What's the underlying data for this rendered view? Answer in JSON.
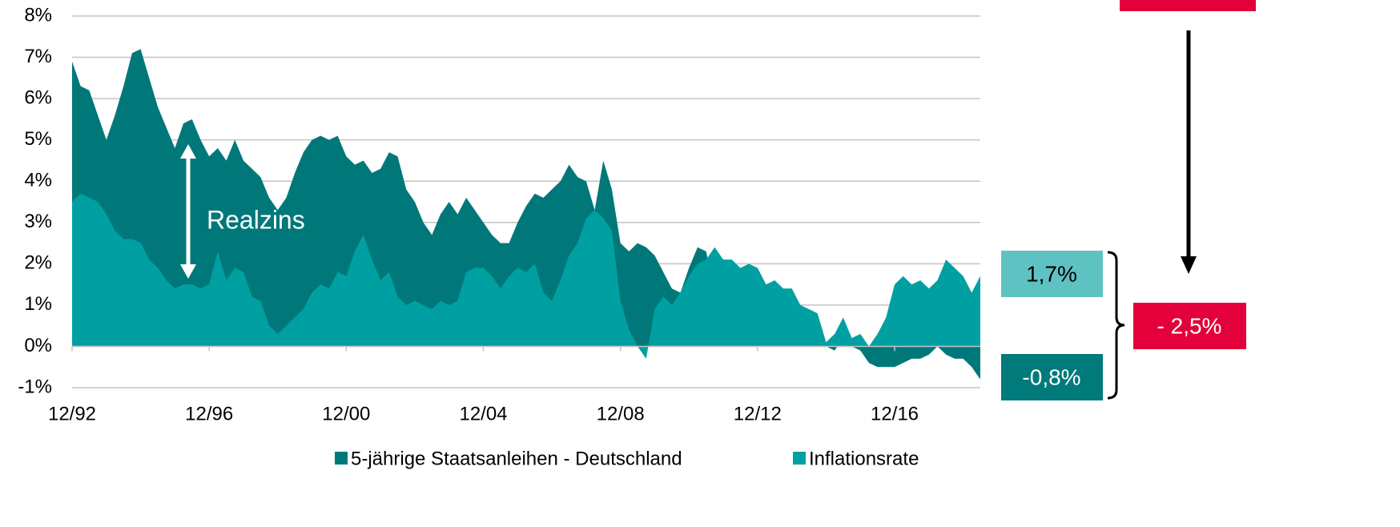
{
  "chart_data": {
    "type": "area",
    "categories": [
      "12/92",
      null,
      null,
      null,
      null,
      null,
      null,
      null,
      null,
      null,
      null,
      null,
      null,
      null,
      null,
      null,
      "12/96",
      null,
      null,
      null,
      null,
      null,
      null,
      null,
      null,
      null,
      null,
      null,
      null,
      null,
      null,
      null,
      "12/00",
      null,
      null,
      null,
      null,
      null,
      null,
      null,
      null,
      null,
      null,
      null,
      null,
      null,
      null,
      null,
      "12/04",
      null,
      null,
      null,
      null,
      null,
      null,
      null,
      null,
      null,
      null,
      null,
      null,
      null,
      null,
      null,
      "12/08",
      null,
      null,
      null,
      null,
      null,
      null,
      null,
      null,
      null,
      null,
      null,
      null,
      null,
      null,
      null,
      "12/12",
      null,
      null,
      null,
      null,
      null,
      null,
      null,
      null,
      null,
      null,
      null,
      null,
      null,
      null,
      null,
      "12/16",
      null,
      null,
      null,
      null,
      null,
      null,
      null,
      null,
      null,
      null
    ],
    "series": [
      {
        "name": "5-jährige Staatsanleihen - Deutschland",
        "color": "#00787a",
        "values": [
          6.9,
          6.3,
          6.2,
          5.6,
          5.0,
          5.6,
          6.3,
          7.1,
          7.2,
          6.5,
          5.8,
          5.3,
          4.8,
          5.4,
          5.5,
          5.0,
          4.6,
          4.8,
          4.5,
          5.0,
          4.5,
          4.3,
          4.1,
          3.6,
          3.3,
          3.6,
          4.2,
          4.7,
          5.0,
          5.1,
          5.0,
          5.1,
          4.6,
          4.4,
          4.5,
          4.2,
          4.3,
          4.7,
          4.6,
          3.8,
          3.5,
          3.0,
          2.7,
          3.2,
          3.5,
          3.2,
          3.6,
          3.3,
          3.0,
          2.7,
          2.5,
          2.5,
          3.0,
          3.4,
          3.7,
          3.6,
          3.8,
          4.0,
          4.4,
          4.1,
          4.0,
          3.3,
          4.5,
          3.8,
          2.5,
          2.3,
          2.5,
          2.4,
          2.2,
          1.8,
          1.4,
          1.3,
          1.9,
          2.4,
          2.3,
          1.3,
          0.8,
          0.8,
          0.5,
          0.4,
          0.3,
          0.4,
          0.7,
          0.9,
          0.9,
          0.7,
          0.4,
          0.2,
          0.0,
          -0.1,
          0.2,
          0.0,
          -0.1,
          -0.4,
          -0.5,
          -0.5,
          -0.5,
          -0.4,
          -0.3,
          -0.3,
          -0.2,
          0.0,
          -0.2,
          -0.3,
          -0.3,
          -0.5,
          -0.8
        ]
      },
      {
        "name": "Inflationsrate",
        "color": "#00a0a2",
        "values": [
          3.5,
          3.7,
          3.6,
          3.5,
          3.2,
          2.8,
          2.6,
          2.6,
          2.5,
          2.1,
          1.9,
          1.6,
          1.4,
          1.5,
          1.5,
          1.4,
          1.5,
          2.3,
          1.6,
          1.9,
          1.8,
          1.2,
          1.1,
          0.5,
          0.3,
          0.5,
          0.7,
          0.9,
          1.3,
          1.5,
          1.4,
          1.8,
          1.7,
          2.3,
          2.7,
          2.1,
          1.6,
          1.8,
          1.2,
          1.0,
          1.1,
          1.0,
          0.9,
          1.1,
          1.0,
          1.1,
          1.8,
          1.9,
          1.9,
          1.7,
          1.4,
          1.7,
          1.9,
          1.8,
          2.0,
          1.3,
          1.1,
          1.6,
          2.2,
          2.5,
          3.1,
          3.3,
          3.1,
          2.8,
          1.1,
          0.4,
          0.0,
          -0.3,
          0.9,
          1.2,
          1.0,
          1.3,
          1.7,
          2.0,
          2.1,
          2.4,
          2.1,
          2.1,
          1.9,
          2.0,
          1.9,
          1.5,
          1.6,
          1.4,
          1.4,
          1.0,
          0.9,
          0.8,
          0.1,
          0.3,
          0.7,
          0.2,
          0.3,
          0.0,
          0.3,
          0.7,
          1.5,
          1.7,
          1.5,
          1.6,
          1.4,
          1.6,
          2.1,
          1.9,
          1.7,
          1.3,
          1.7
        ]
      }
    ],
    "ylim": [
      -1,
      8
    ],
    "yticks": [
      {
        "value": -1,
        "label": "-1%"
      },
      {
        "value": 0,
        "label": "0%"
      },
      {
        "value": 1,
        "label": "1%"
      },
      {
        "value": 2,
        "label": "2%"
      },
      {
        "value": 3,
        "label": "3%"
      },
      {
        "value": 4,
        "label": "4%"
      },
      {
        "value": 5,
        "label": "5%"
      },
      {
        "value": 6,
        "label": "6%"
      },
      {
        "value": 7,
        "label": "7%"
      },
      {
        "value": 8,
        "label": "8%"
      }
    ],
    "grid": true,
    "annotations": [
      "Realzins",
      "1,7%",
      "-0,8%",
      "- 2,5%"
    ]
  }
}
